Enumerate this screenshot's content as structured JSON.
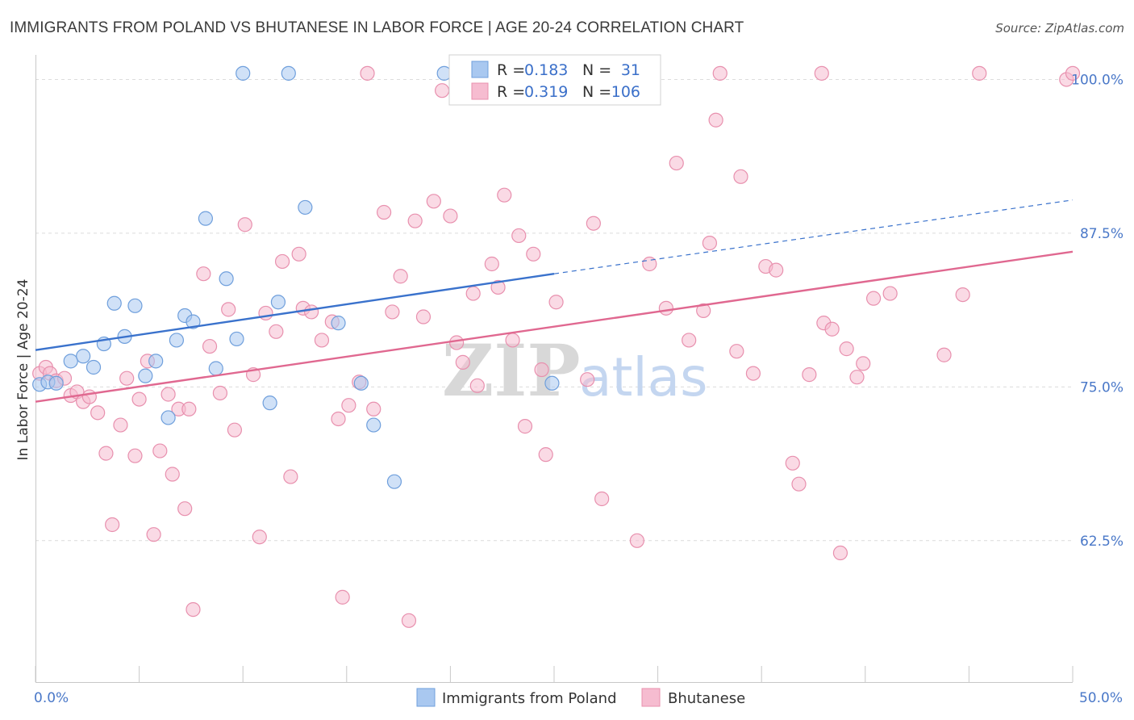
{
  "chart_data": {
    "type": "scatter",
    "title": "IMMIGRANTS FROM POLAND VS BHUTANESE IN LABOR FORCE | AGE 20-24 CORRELATION CHART",
    "source": "Source: ZipAtlas.com",
    "ylabel": "In Labor Force | Age 20-24",
    "xlabel": "",
    "xlim": [
      0,
      50
    ],
    "ylim": [
      51,
      102
    ],
    "x_tick_labels": [
      "0.0%",
      "50.0%"
    ],
    "y_ticks": [
      {
        "value": 100.0,
        "label": "100.0%"
      },
      {
        "value": 87.5,
        "label": "87.5%"
      },
      {
        "value": 75.0,
        "label": "75.0%"
      },
      {
        "value": 62.5,
        "label": "62.5%"
      }
    ],
    "legend": {
      "r_label": "R =",
      "n_label": "N =",
      "entries": [
        {
          "r": "0.183",
          "n": "31"
        },
        {
          "r": "0.319",
          "n": "106"
        }
      ]
    },
    "watermark": {
      "zip": "ZIP",
      "atlas": "atlas"
    },
    "series": [
      {
        "name": "Immigrants from Poland",
        "color": "#a9c8f0",
        "stroke": "#6f9fdc",
        "trend_color": "#3a72cc",
        "trend": {
          "x0": 0,
          "y0": 78.0,
          "x1": 25,
          "y1": 84.2,
          "dash_x1": 50,
          "dash_y1": 90.2
        },
        "points": [
          [
            0.2,
            75.2
          ],
          [
            0.6,
            75.4
          ],
          [
            1.0,
            75.3
          ],
          [
            1.7,
            77.1
          ],
          [
            2.3,
            77.5
          ],
          [
            2.8,
            76.6
          ],
          [
            3.3,
            78.5
          ],
          [
            3.8,
            81.8
          ],
          [
            4.3,
            79.1
          ],
          [
            4.8,
            81.6
          ],
          [
            5.3,
            75.9
          ],
          [
            5.8,
            77.1
          ],
          [
            6.4,
            72.5
          ],
          [
            6.8,
            78.8
          ],
          [
            7.2,
            80.8
          ],
          [
            7.6,
            80.3
          ],
          [
            8.2,
            88.7
          ],
          [
            8.7,
            76.5
          ],
          [
            9.2,
            83.8
          ],
          [
            9.7,
            78.9
          ],
          [
            10.0,
            100.5
          ],
          [
            11.3,
            73.7
          ],
          [
            11.7,
            81.9
          ],
          [
            12.2,
            100.5
          ],
          [
            13.0,
            89.6
          ],
          [
            14.6,
            80.2
          ],
          [
            15.7,
            75.3
          ],
          [
            16.3,
            71.9
          ],
          [
            17.3,
            67.3
          ],
          [
            19.7,
            100.5
          ],
          [
            24.9,
            75.3
          ]
        ]
      },
      {
        "name": "Bhutanese",
        "color": "#f6bcd0",
        "stroke": "#e890ae",
        "trend_color": "#e06890",
        "trend": {
          "x0": 0,
          "y0": 73.8,
          "x1": 50,
          "y1": 86.0
        },
        "points": [
          [
            0.2,
            76.1
          ],
          [
            0.5,
            76.6
          ],
          [
            0.7,
            76.1
          ],
          [
            1.0,
            75.5
          ],
          [
            1.4,
            75.7
          ],
          [
            1.7,
            74.3
          ],
          [
            2.0,
            74.6
          ],
          [
            2.3,
            73.8
          ],
          [
            2.6,
            74.2
          ],
          [
            3.0,
            72.9
          ],
          [
            3.4,
            69.6
          ],
          [
            3.7,
            63.8
          ],
          [
            4.1,
            71.9
          ],
          [
            4.4,
            75.7
          ],
          [
            4.8,
            69.4
          ],
          [
            5.0,
            74.0
          ],
          [
            5.4,
            77.1
          ],
          [
            5.7,
            63.0
          ],
          [
            6.0,
            69.8
          ],
          [
            6.4,
            74.4
          ],
          [
            6.6,
            67.9
          ],
          [
            6.9,
            73.2
          ],
          [
            7.2,
            65.1
          ],
          [
            7.4,
            73.2
          ],
          [
            7.6,
            56.9
          ],
          [
            8.1,
            84.2
          ],
          [
            8.4,
            78.3
          ],
          [
            8.9,
            74.5
          ],
          [
            9.3,
            81.3
          ],
          [
            9.6,
            71.5
          ],
          [
            10.1,
            88.2
          ],
          [
            10.5,
            76.0
          ],
          [
            10.8,
            62.8
          ],
          [
            11.1,
            81.0
          ],
          [
            11.6,
            79.5
          ],
          [
            11.9,
            85.2
          ],
          [
            12.3,
            67.7
          ],
          [
            12.7,
            85.8
          ],
          [
            12.9,
            81.4
          ],
          [
            13.3,
            81.1
          ],
          [
            13.8,
            78.8
          ],
          [
            14.3,
            80.3
          ],
          [
            14.6,
            72.4
          ],
          [
            14.8,
            57.9
          ],
          [
            15.1,
            73.5
          ],
          [
            15.6,
            75.4
          ],
          [
            16.0,
            100.5
          ],
          [
            16.3,
            73.2
          ],
          [
            16.8,
            89.2
          ],
          [
            17.2,
            81.1
          ],
          [
            17.6,
            84.0
          ],
          [
            18.0,
            56.0
          ],
          [
            18.3,
            88.5
          ],
          [
            18.7,
            80.7
          ],
          [
            19.2,
            90.1
          ],
          [
            19.6,
            99.1
          ],
          [
            20.0,
            88.9
          ],
          [
            20.3,
            78.6
          ],
          [
            20.6,
            77.0
          ],
          [
            21.1,
            82.6
          ],
          [
            21.3,
            75.1
          ],
          [
            22.0,
            85.0
          ],
          [
            22.3,
            83.1
          ],
          [
            22.6,
            90.6
          ],
          [
            23.0,
            78.8
          ],
          [
            23.3,
            87.3
          ],
          [
            23.6,
            71.8
          ],
          [
            24.0,
            85.8
          ],
          [
            24.4,
            76.4
          ],
          [
            24.6,
            69.5
          ],
          [
            25.1,
            81.9
          ],
          [
            26.0,
            100.5
          ],
          [
            26.6,
            75.6
          ],
          [
            26.9,
            88.3
          ],
          [
            27.3,
            65.9
          ],
          [
            29.0,
            62.5
          ],
          [
            29.6,
            85.0
          ],
          [
            30.4,
            81.4
          ],
          [
            30.9,
            93.2
          ],
          [
            31.5,
            78.8
          ],
          [
            32.2,
            81.2
          ],
          [
            32.5,
            86.7
          ],
          [
            32.8,
            96.7
          ],
          [
            33.0,
            100.5
          ],
          [
            33.8,
            77.9
          ],
          [
            34.0,
            92.1
          ],
          [
            34.6,
            76.1
          ],
          [
            35.2,
            84.8
          ],
          [
            35.7,
            84.5
          ],
          [
            36.5,
            68.8
          ],
          [
            36.8,
            67.1
          ],
          [
            37.3,
            76.0
          ],
          [
            37.9,
            100.5
          ],
          [
            38.0,
            80.2
          ],
          [
            38.4,
            79.7
          ],
          [
            38.8,
            61.5
          ],
          [
            39.1,
            78.1
          ],
          [
            39.6,
            75.8
          ],
          [
            39.9,
            76.9
          ],
          [
            40.4,
            82.2
          ],
          [
            41.2,
            82.6
          ],
          [
            43.8,
            77.6
          ],
          [
            44.7,
            82.5
          ],
          [
            45.5,
            100.5
          ],
          [
            49.7,
            100.0
          ],
          [
            50.0,
            100.5
          ]
        ]
      }
    ]
  }
}
